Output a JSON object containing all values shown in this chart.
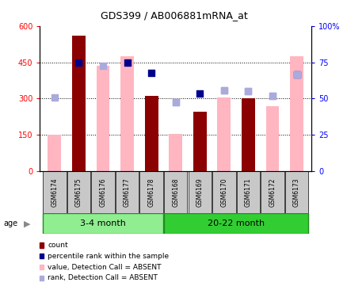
{
  "title": "GDS399 / AB006881mRNA_at",
  "samples": [
    "GSM6174",
    "GSM6175",
    "GSM6176",
    "GSM6177",
    "GSM6178",
    "GSM6168",
    "GSM6169",
    "GSM6170",
    "GSM6171",
    "GSM6172",
    "GSM6173"
  ],
  "bar_values": [
    150,
    560,
    435,
    475,
    310,
    155,
    245,
    305,
    300,
    270,
    475
  ],
  "bar_is_count": [
    false,
    true,
    false,
    false,
    true,
    false,
    true,
    false,
    true,
    false,
    false
  ],
  "dot_values": [
    305,
    450,
    null,
    450,
    405,
    285,
    320,
    335,
    330,
    310,
    400
  ],
  "dot_is_dark": [
    false,
    true,
    false,
    true,
    true,
    false,
    true,
    false,
    false,
    false,
    true
  ],
  "rank_dot_values": [
    null,
    null,
    435,
    null,
    null,
    285,
    null,
    335,
    330,
    310,
    400
  ],
  "ylim_left": [
    0,
    600
  ],
  "ylim_right": [
    0,
    100
  ],
  "yticks_left": [
    0,
    150,
    300,
    450,
    600
  ],
  "yticks_right": [
    0,
    25,
    50,
    75,
    100
  ],
  "yticklabels_left": [
    "0",
    "150",
    "300",
    "450",
    "600"
  ],
  "yticklabels_right": [
    "0",
    "25",
    "50",
    "75",
    "100%"
  ],
  "color_bar_count": "#8B0000",
  "color_bar_absent": "#FFB6C1",
  "color_dot_dark_blue": "#00008B",
  "color_dot_light_blue": "#AAAADD",
  "group1_label": "3-4 month",
  "group2_label": "20-22 month",
  "group1_color": "#90EE90",
  "group2_color": "#32CD32",
  "group_border_color": "#228B22",
  "legend_items": [
    {
      "label": "count",
      "color": "#8B0000"
    },
    {
      "label": "percentile rank within the sample",
      "color": "#00008B"
    },
    {
      "label": "value, Detection Call = ABSENT",
      "color": "#FFB6C1"
    },
    {
      "label": "rank, Detection Call = ABSENT",
      "color": "#AAAADD"
    }
  ],
  "title_fontsize": 9,
  "tick_fontsize": 7,
  "label_fontsize": 5.5,
  "group_fontsize": 8,
  "legend_fontsize": 6.5
}
